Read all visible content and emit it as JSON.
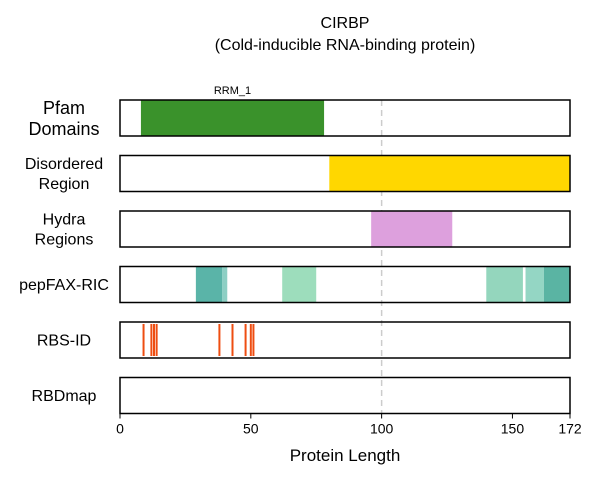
{
  "chart_data": {
    "type": "bar",
    "title_line1": "CIRBP",
    "title_line2": "(Cold-inducible RNA-binding protein)",
    "xlabel": "Protein Length",
    "xlim": [
      0,
      172
    ],
    "xticks": [
      0,
      50,
      100,
      150,
      172
    ],
    "reference_line_x": 100,
    "tracks": [
      {
        "label_lines": [
          "Pfam",
          "Domains"
        ],
        "segments": [
          {
            "start": 8,
            "end": 78,
            "color": "#3a922b",
            "label": "RRM_1"
          }
        ]
      },
      {
        "label_lines": [
          "Disordered",
          "Region"
        ],
        "segments": [
          {
            "start": 80,
            "end": 172,
            "color": "#ffd700"
          }
        ]
      },
      {
        "label_lines": [
          "Hydra",
          "Regions"
        ],
        "segments": [
          {
            "start": 96,
            "end": 127,
            "color": "#dda0dd"
          }
        ]
      },
      {
        "label_lines": [
          "pepFAX-RIC"
        ],
        "segments": [
          {
            "start": 29,
            "end": 39,
            "color": "#5ab4a8"
          },
          {
            "start": 39,
            "end": 41,
            "color": "#8dcfc4"
          },
          {
            "start": 62,
            "end": 75,
            "color": "#9dddbc"
          },
          {
            "start": 140,
            "end": 154,
            "color": "#94d6bd"
          },
          {
            "start": 155,
            "end": 162,
            "color": "#94d6c4"
          },
          {
            "start": 162,
            "end": 172,
            "color": "#5ab4a3"
          }
        ]
      },
      {
        "label_lines": [
          "RBS-ID"
        ],
        "lines": [
          9,
          12,
          13,
          14,
          38,
          43,
          48,
          50,
          51
        ],
        "line_color": "#ee4d11"
      },
      {
        "label_lines": [
          "RBDmap"
        ],
        "segments": []
      }
    ],
    "colors": {
      "reference_line": "#cccccc",
      "track_border": "#000000"
    }
  }
}
